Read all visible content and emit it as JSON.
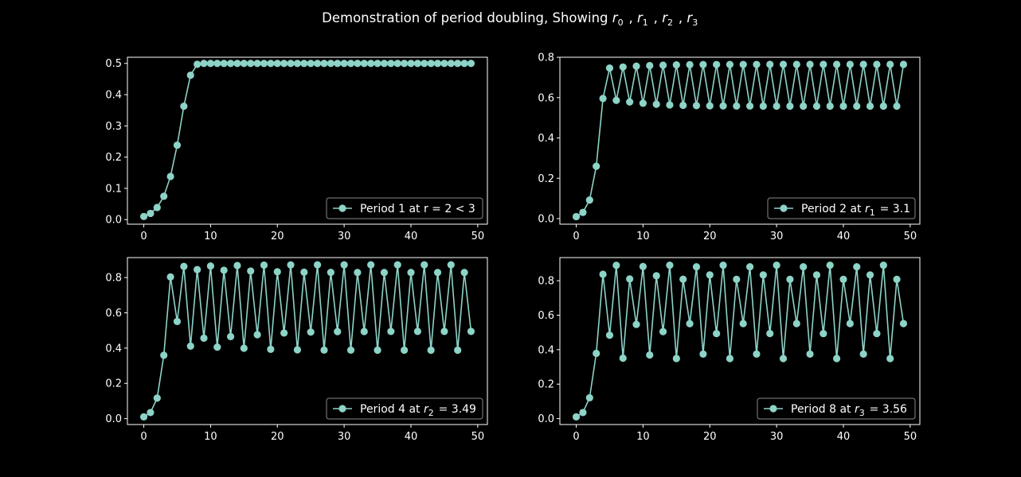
{
  "title_parts": [
    "Demonstration of period doubling, Showing ",
    "r",
    "0",
    " , ",
    "r",
    "1",
    " , ",
    "r",
    "2",
    " , ",
    "r",
    "3"
  ],
  "colors": {
    "background": "#000000",
    "foreground": "#ffffff",
    "series": "#8dd3c7"
  },
  "chart_data": [
    {
      "type": "line",
      "legend": {
        "text": "Period 1 at r = 2 < 3",
        "placement": "lower-right"
      },
      "xlim": [
        -2.45,
        51.45
      ],
      "ylim": [
        -0.0147,
        0.5197
      ],
      "xticks": [
        0,
        10,
        20,
        30,
        40,
        50
      ],
      "yticks": [
        0.0,
        0.1,
        0.2,
        0.3,
        0.4,
        0.5
      ],
      "ytick_labels": [
        "0.0",
        "0.1",
        "0.2",
        "0.3",
        "0.4",
        "0.5"
      ],
      "x": [
        0,
        1,
        2,
        3,
        4,
        5,
        6,
        7,
        8,
        9,
        10,
        11,
        12,
        13,
        14,
        15,
        16,
        17,
        18,
        19,
        20,
        21,
        22,
        23,
        24,
        25,
        26,
        27,
        28,
        29,
        30,
        31,
        32,
        33,
        34,
        35,
        36,
        37,
        38,
        39,
        40,
        41,
        42,
        43,
        44,
        45,
        46,
        47,
        48,
        49
      ],
      "y": [
        0.01,
        0.0198,
        0.0388,
        0.0746,
        0.1381,
        0.2381,
        0.3628,
        0.4623,
        0.4971,
        0.5,
        0.5,
        0.5,
        0.5,
        0.5,
        0.5,
        0.5,
        0.5,
        0.5,
        0.5,
        0.5,
        0.5,
        0.5,
        0.5,
        0.5,
        0.5,
        0.5,
        0.5,
        0.5,
        0.5,
        0.5,
        0.5,
        0.5,
        0.5,
        0.5,
        0.5,
        0.5,
        0.5,
        0.5,
        0.5,
        0.5,
        0.5,
        0.5,
        0.5,
        0.5,
        0.5,
        0.5,
        0.5,
        0.5,
        0.5,
        0.5
      ]
    },
    {
      "type": "line",
      "legend": {
        "text_parts": [
          "Period 2 at ",
          "r",
          "1",
          " = 3.1"
        ],
        "placement": "lower-right"
      },
      "xlim": [
        -2.45,
        51.45
      ],
      "ylim": [
        -0.0277,
        0.8003
      ],
      "xticks": [
        0,
        10,
        20,
        30,
        40,
        50
      ],
      "yticks": [
        0.0,
        0.2,
        0.4,
        0.6,
        0.8
      ],
      "ytick_labels": [
        "0.0",
        "0.2",
        "0.4",
        "0.6",
        "0.8"
      ],
      "x": [
        0,
        1,
        2,
        3,
        4,
        5,
        6,
        7,
        8,
        9,
        10,
        11,
        12,
        13,
        14,
        15,
        16,
        17,
        18,
        19,
        20,
        21,
        22,
        23,
        24,
        25,
        26,
        27,
        28,
        29,
        30,
        31,
        32,
        33,
        34,
        35,
        36,
        37,
        38,
        39,
        40,
        41,
        42,
        43,
        44,
        45,
        46,
        47,
        48,
        49
      ],
      "y": [
        0.01,
        0.0307,
        0.0922,
        0.2595,
        0.5957,
        0.7466,
        0.5865,
        0.7518,
        0.5784,
        0.756,
        0.572,
        0.7589,
        0.5672,
        0.761,
        0.5638,
        0.7623,
        0.5617,
        0.7632,
        0.5602,
        0.7638,
        0.5593,
        0.7641,
        0.5587,
        0.7644,
        0.5584,
        0.7645,
        0.5581,
        0.7646,
        0.558,
        0.7647,
        0.5579,
        0.7647,
        0.5579,
        0.7647,
        0.5578,
        0.7648,
        0.5578,
        0.7648,
        0.5578,
        0.7648,
        0.5578,
        0.7648,
        0.5578,
        0.7648,
        0.5578,
        0.7648,
        0.5578,
        0.7648,
        0.5578,
        0.7648
      ]
    },
    {
      "type": "line",
      "legend": {
        "text_parts": [
          "Period 4 at ",
          "r",
          "2",
          " = 3.49"
        ],
        "placement": "lower-right"
      },
      "xlim": [
        -2.45,
        51.45
      ],
      "ylim": [
        -0.0334,
        0.9134
      ],
      "xticks": [
        0,
        10,
        20,
        30,
        40,
        50
      ],
      "yticks": [
        0.0,
        0.2,
        0.4,
        0.6,
        0.8
      ],
      "ytick_labels": [
        "0.0",
        "0.2",
        "0.4",
        "0.6",
        "0.8"
      ],
      "x": [
        0,
        1,
        2,
        3,
        4,
        5,
        6,
        7,
        8,
        9,
        10,
        11,
        12,
        13,
        14,
        15,
        16,
        17,
        18,
        19,
        20,
        21,
        22,
        23,
        24,
        25,
        26,
        27,
        28,
        29,
        30,
        31,
        32,
        33,
        34,
        35,
        36,
        37,
        38,
        39,
        40,
        41,
        42,
        43,
        44,
        45,
        46,
        47,
        48,
        49
      ],
      "y": [
        0.01,
        0.0346,
        0.1165,
        0.3594,
        0.8035,
        0.551,
        0.8635,
        0.4114,
        0.8453,
        0.4564,
        0.8657,
        0.4057,
        0.8416,
        0.4651,
        0.8682,
        0.3993,
        0.8371,
        0.476,
        0.8705,
        0.3934,
        0.8329,
        0.4857,
        0.8717,
        0.3903,
        0.8306,
        0.4911,
        0.8722,
        0.3889,
        0.8294,
        0.4935,
        0.8723,
        0.3885,
        0.8291,
        0.4942,
        0.8724,
        0.3884,
        0.829,
        0.4944,
        0.8724,
        0.3884,
        0.829,
        0.4945,
        0.8724,
        0.3884,
        0.829,
        0.4945,
        0.8724,
        0.3884,
        0.829,
        0.4945
      ]
    },
    {
      "type": "line",
      "legend": {
        "text_parts": [
          "Period 8 at ",
          "r",
          "3",
          " = 3.56"
        ],
        "placement": "lower-right"
      },
      "xlim": [
        -2.45,
        51.45
      ],
      "ylim": [
        -0.0343,
        0.9343
      ],
      "xticks": [
        0,
        10,
        20,
        30,
        40,
        50
      ],
      "yticks": [
        0.0,
        0.2,
        0.4,
        0.6,
        0.8
      ],
      "ytick_labels": [
        "0.0",
        "0.2",
        "0.4",
        "0.6",
        "0.8"
      ],
      "x": [
        0,
        1,
        2,
        3,
        4,
        5,
        6,
        7,
        8,
        9,
        10,
        11,
        12,
        13,
        14,
        15,
        16,
        17,
        18,
        19,
        20,
        21,
        22,
        23,
        24,
        25,
        26,
        27,
        28,
        29,
        30,
        31,
        32,
        33,
        34,
        35,
        36,
        37,
        38,
        39,
        40,
        41,
        42,
        43,
        44,
        45,
        46,
        47,
        48,
        49
      ],
      "y": [
        0.01,
        0.0352,
        0.121,
        0.3787,
        0.8376,
        0.4842,
        0.8892,
        0.3508,
        0.8106,
        0.5465,
        0.8825,
        0.3691,
        0.829,
        0.5046,
        0.8899,
        0.3488,
        0.8087,
        0.5508,
        0.8806,
        0.3743,
        0.8337,
        0.4935,
        0.89,
        0.3485,
        0.8083,
        0.5515,
        0.8806,
        0.3743,
        0.8337,
        0.4936,
        0.89,
        0.3485,
        0.8083,
        0.5516,
        0.8806,
        0.3743,
        0.8337,
        0.4935,
        0.89,
        0.3485,
        0.8083,
        0.5516,
        0.8806,
        0.3743,
        0.8337,
        0.4935,
        0.89,
        0.3485,
        0.8083,
        0.5516
      ]
    }
  ]
}
